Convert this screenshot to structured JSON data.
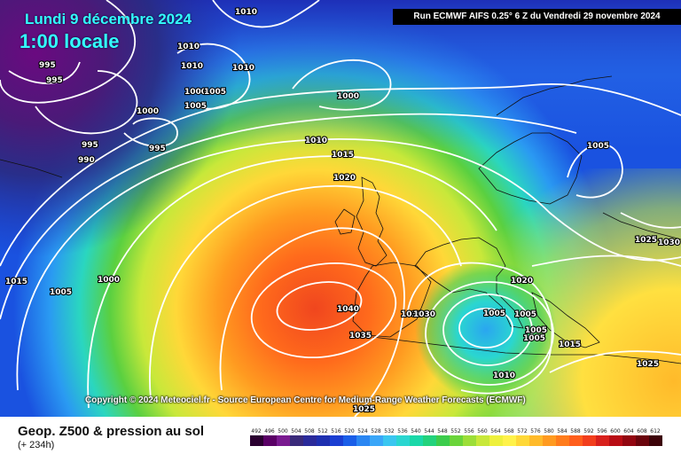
{
  "header": {
    "date": "Lundi 9 décembre 2024",
    "local_time": "1:00 locale",
    "run_info": "Run ECMWF AIFS 0.25° 6 Z du Vendredi 29 novembre 2024"
  },
  "copyright": "Copyright © 2024 Meteociel.fr - Source European Centre for Medium-Range Weather Forecasts (ECMWF)",
  "footer": {
    "title": "Geop. Z500 & pression au sol",
    "lead_time": "(+ 234h)"
  },
  "colorbar": {
    "ticks": [
      "492",
      "496",
      "500",
      "504",
      "508",
      "512",
      "516",
      "520",
      "524",
      "528",
      "532",
      "536",
      "540",
      "544",
      "548",
      "552",
      "556",
      "560",
      "564",
      "568",
      "572",
      "576",
      "580",
      "584",
      "588",
      "592",
      "596",
      "600",
      "604",
      "608",
      "612"
    ],
    "colors": [
      "#2a0030",
      "#5a0066",
      "#7a1a90",
      "#3a2a7a",
      "#2a2a9a",
      "#1e2fb0",
      "#1a3ed2",
      "#1a5ee8",
      "#2a86f2",
      "#3aa6f8",
      "#3ac6f0",
      "#2ad6d0",
      "#1ad8a8",
      "#22d27c",
      "#3ccc4c",
      "#6ad43a",
      "#9cde38",
      "#c8e83a",
      "#eef03c",
      "#fff24a",
      "#ffd838",
      "#ffba2a",
      "#ff9a20",
      "#ff7c1c",
      "#ff5e1c",
      "#f23e1c",
      "#d8201c",
      "#b80c14",
      "#920610",
      "#6a040c",
      "#3c0208"
    ]
  },
  "pressure_labels": [
    {
      "text": "1010"
    },
    {
      "text": "1010"
    },
    {
      "text": "1010"
    },
    {
      "text": "1010"
    },
    {
      "text": "995"
    },
    {
      "text": "995"
    },
    {
      "text": "1000"
    },
    {
      "text": "1005"
    },
    {
      "text": "1005"
    },
    {
      "text": "1000"
    },
    {
      "text": "1000"
    },
    {
      "text": "995"
    },
    {
      "text": "990"
    },
    {
      "text": "995"
    },
    {
      "text": "1010"
    },
    {
      "text": "1015"
    },
    {
      "text": "1020"
    },
    {
      "text": "1015"
    },
    {
      "text": "1005"
    },
    {
      "text": "1000"
    },
    {
      "text": "1040"
    },
    {
      "text": "1035"
    },
    {
      "text": "1030"
    },
    {
      "text": "1025"
    },
    {
      "text": "1020"
    },
    {
      "text": "1005"
    },
    {
      "text": "1005"
    },
    {
      "text": "1005"
    },
    {
      "text": "1015"
    },
    {
      "text": "1010"
    },
    {
      "text": "1025"
    },
    {
      "text": "1030"
    },
    {
      "text": "1025"
    },
    {
      "text": "1005"
    },
    {
      "text": "1005"
    },
    {
      "text": "1030"
    }
  ]
}
